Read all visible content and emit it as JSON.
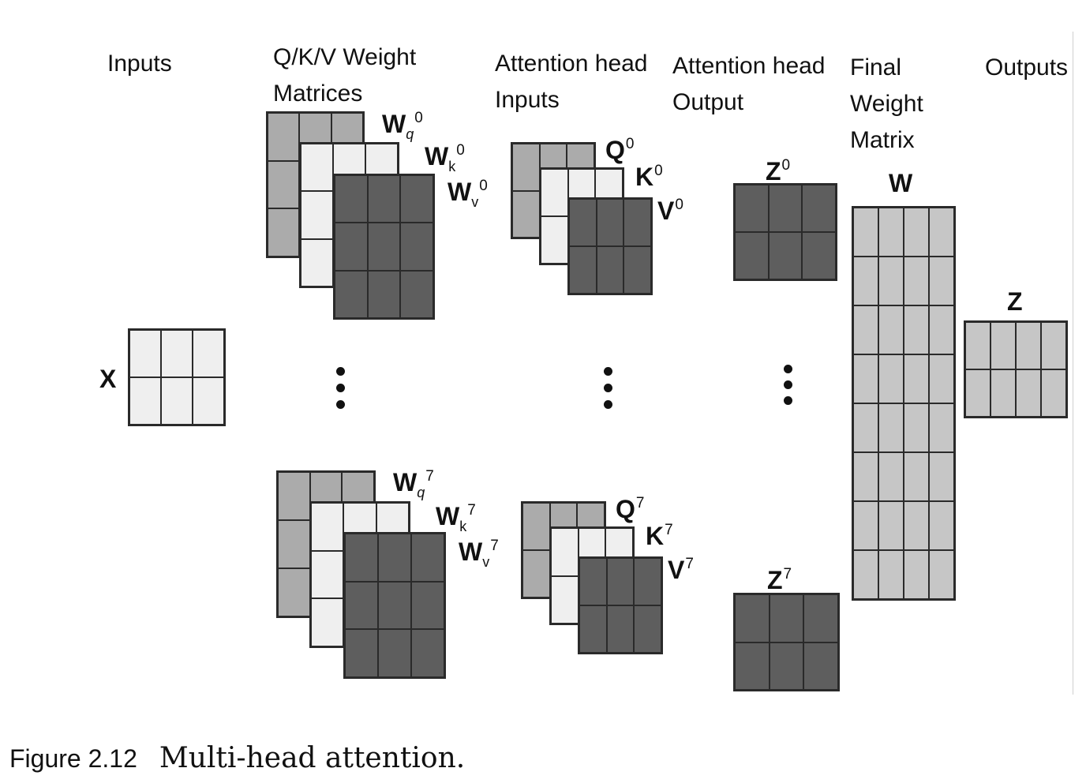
{
  "headers": {
    "inputs": "Inputs",
    "qkv_line1": "Q/K/V  Weight",
    "qkv_line2": "Matrices",
    "head_inputs_line1": "Attention head",
    "head_inputs_line2": "Inputs",
    "head_output_line1": "Attention head",
    "head_output_line2": "Output",
    "final_line1": "Final",
    "final_line2": "Weight",
    "final_line3": "Matrix",
    "outputs": "Outputs"
  },
  "labels": {
    "x": "X",
    "w_top": {
      "base": "W",
      "q": "q",
      "k": "k",
      "v": "v",
      "idx": "0"
    },
    "w_bottom": {
      "base": "W",
      "q": "q",
      "k": "k",
      "v": "v",
      "idx": "7"
    },
    "qkv_top": {
      "q": "Q",
      "k": "K",
      "v": "V",
      "idx": "0"
    },
    "qkv_bottom": {
      "q": "Q",
      "k": "K",
      "v": "V",
      "idx": "7"
    },
    "z_top": {
      "base": "Z",
      "idx": "0"
    },
    "z_bottom": {
      "base": "Z",
      "idx": "7"
    },
    "w_final": "W",
    "z": "Z"
  },
  "caption": {
    "number": "Figure 2.12",
    "text": "Multi-head attention."
  },
  "colors": {
    "light": "#efefef",
    "mid": "#ababab",
    "dark": "#5e5e5e",
    "final": "#c6c6c6"
  }
}
